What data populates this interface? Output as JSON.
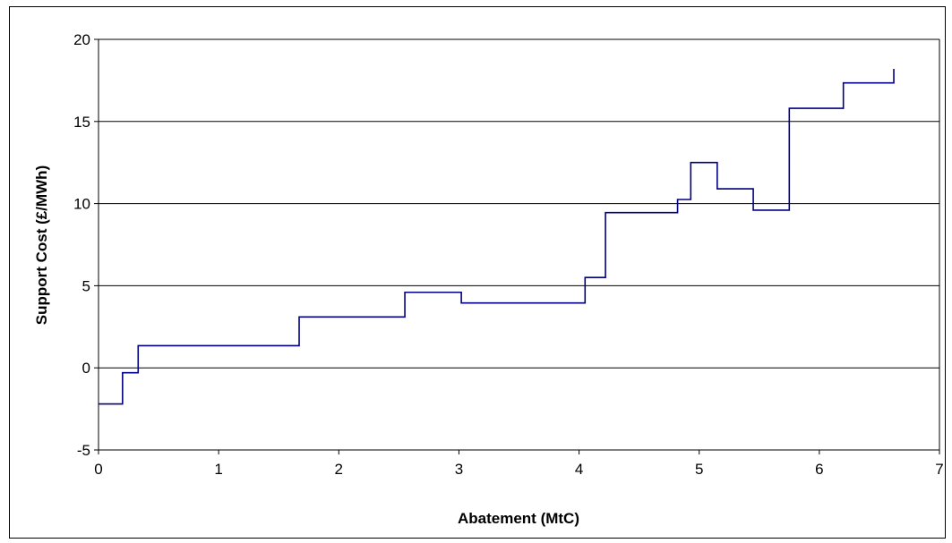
{
  "chart_data": {
    "type": "line",
    "step": true,
    "title": "",
    "xlabel": "Abatement (MtC)",
    "ylabel": "Support Cost (£/MWh)",
    "xlim": [
      0,
      7
    ],
    "ylim": [
      -5,
      20
    ],
    "x_ticks": [
      0,
      1,
      2,
      3,
      4,
      5,
      6,
      7
    ],
    "y_ticks": [
      -5,
      0,
      5,
      10,
      15,
      20
    ],
    "x_tick_labels": [
      "0",
      "1",
      "2",
      "3",
      "4",
      "5",
      "6",
      "7"
    ],
    "y_tick_labels": [
      "-5",
      "0",
      "5",
      "10",
      "15",
      "20"
    ],
    "grid": "horizontal",
    "legend": "none",
    "series": [
      {
        "points": [
          [
            0,
            -2.2
          ],
          [
            0.2,
            -2.2
          ],
          [
            0.2,
            -0.3
          ],
          [
            0.33,
            -0.3
          ],
          [
            0.33,
            1.35
          ],
          [
            1.67,
            1.35
          ],
          [
            1.67,
            3.1
          ],
          [
            2.55,
            3.1
          ],
          [
            2.55,
            4.6
          ],
          [
            3.02,
            4.6
          ],
          [
            3.02,
            3.95
          ],
          [
            4.05,
            3.95
          ],
          [
            4.05,
            5.5
          ],
          [
            4.22,
            5.5
          ],
          [
            4.22,
            9.45
          ],
          [
            4.82,
            9.45
          ],
          [
            4.82,
            10.25
          ],
          [
            4.93,
            10.25
          ],
          [
            4.93,
            12.5
          ],
          [
            5.15,
            12.5
          ],
          [
            5.15,
            10.9
          ],
          [
            5.45,
            10.9
          ],
          [
            5.45,
            9.6
          ],
          [
            5.75,
            9.6
          ],
          [
            5.75,
            15.8
          ],
          [
            6.2,
            15.8
          ],
          [
            6.2,
            17.35
          ],
          [
            6.62,
            17.35
          ],
          [
            6.62,
            18.2
          ]
        ]
      }
    ],
    "colors": {
      "line": "#000080",
      "grid": "#000000",
      "axis": "#000000"
    }
  }
}
